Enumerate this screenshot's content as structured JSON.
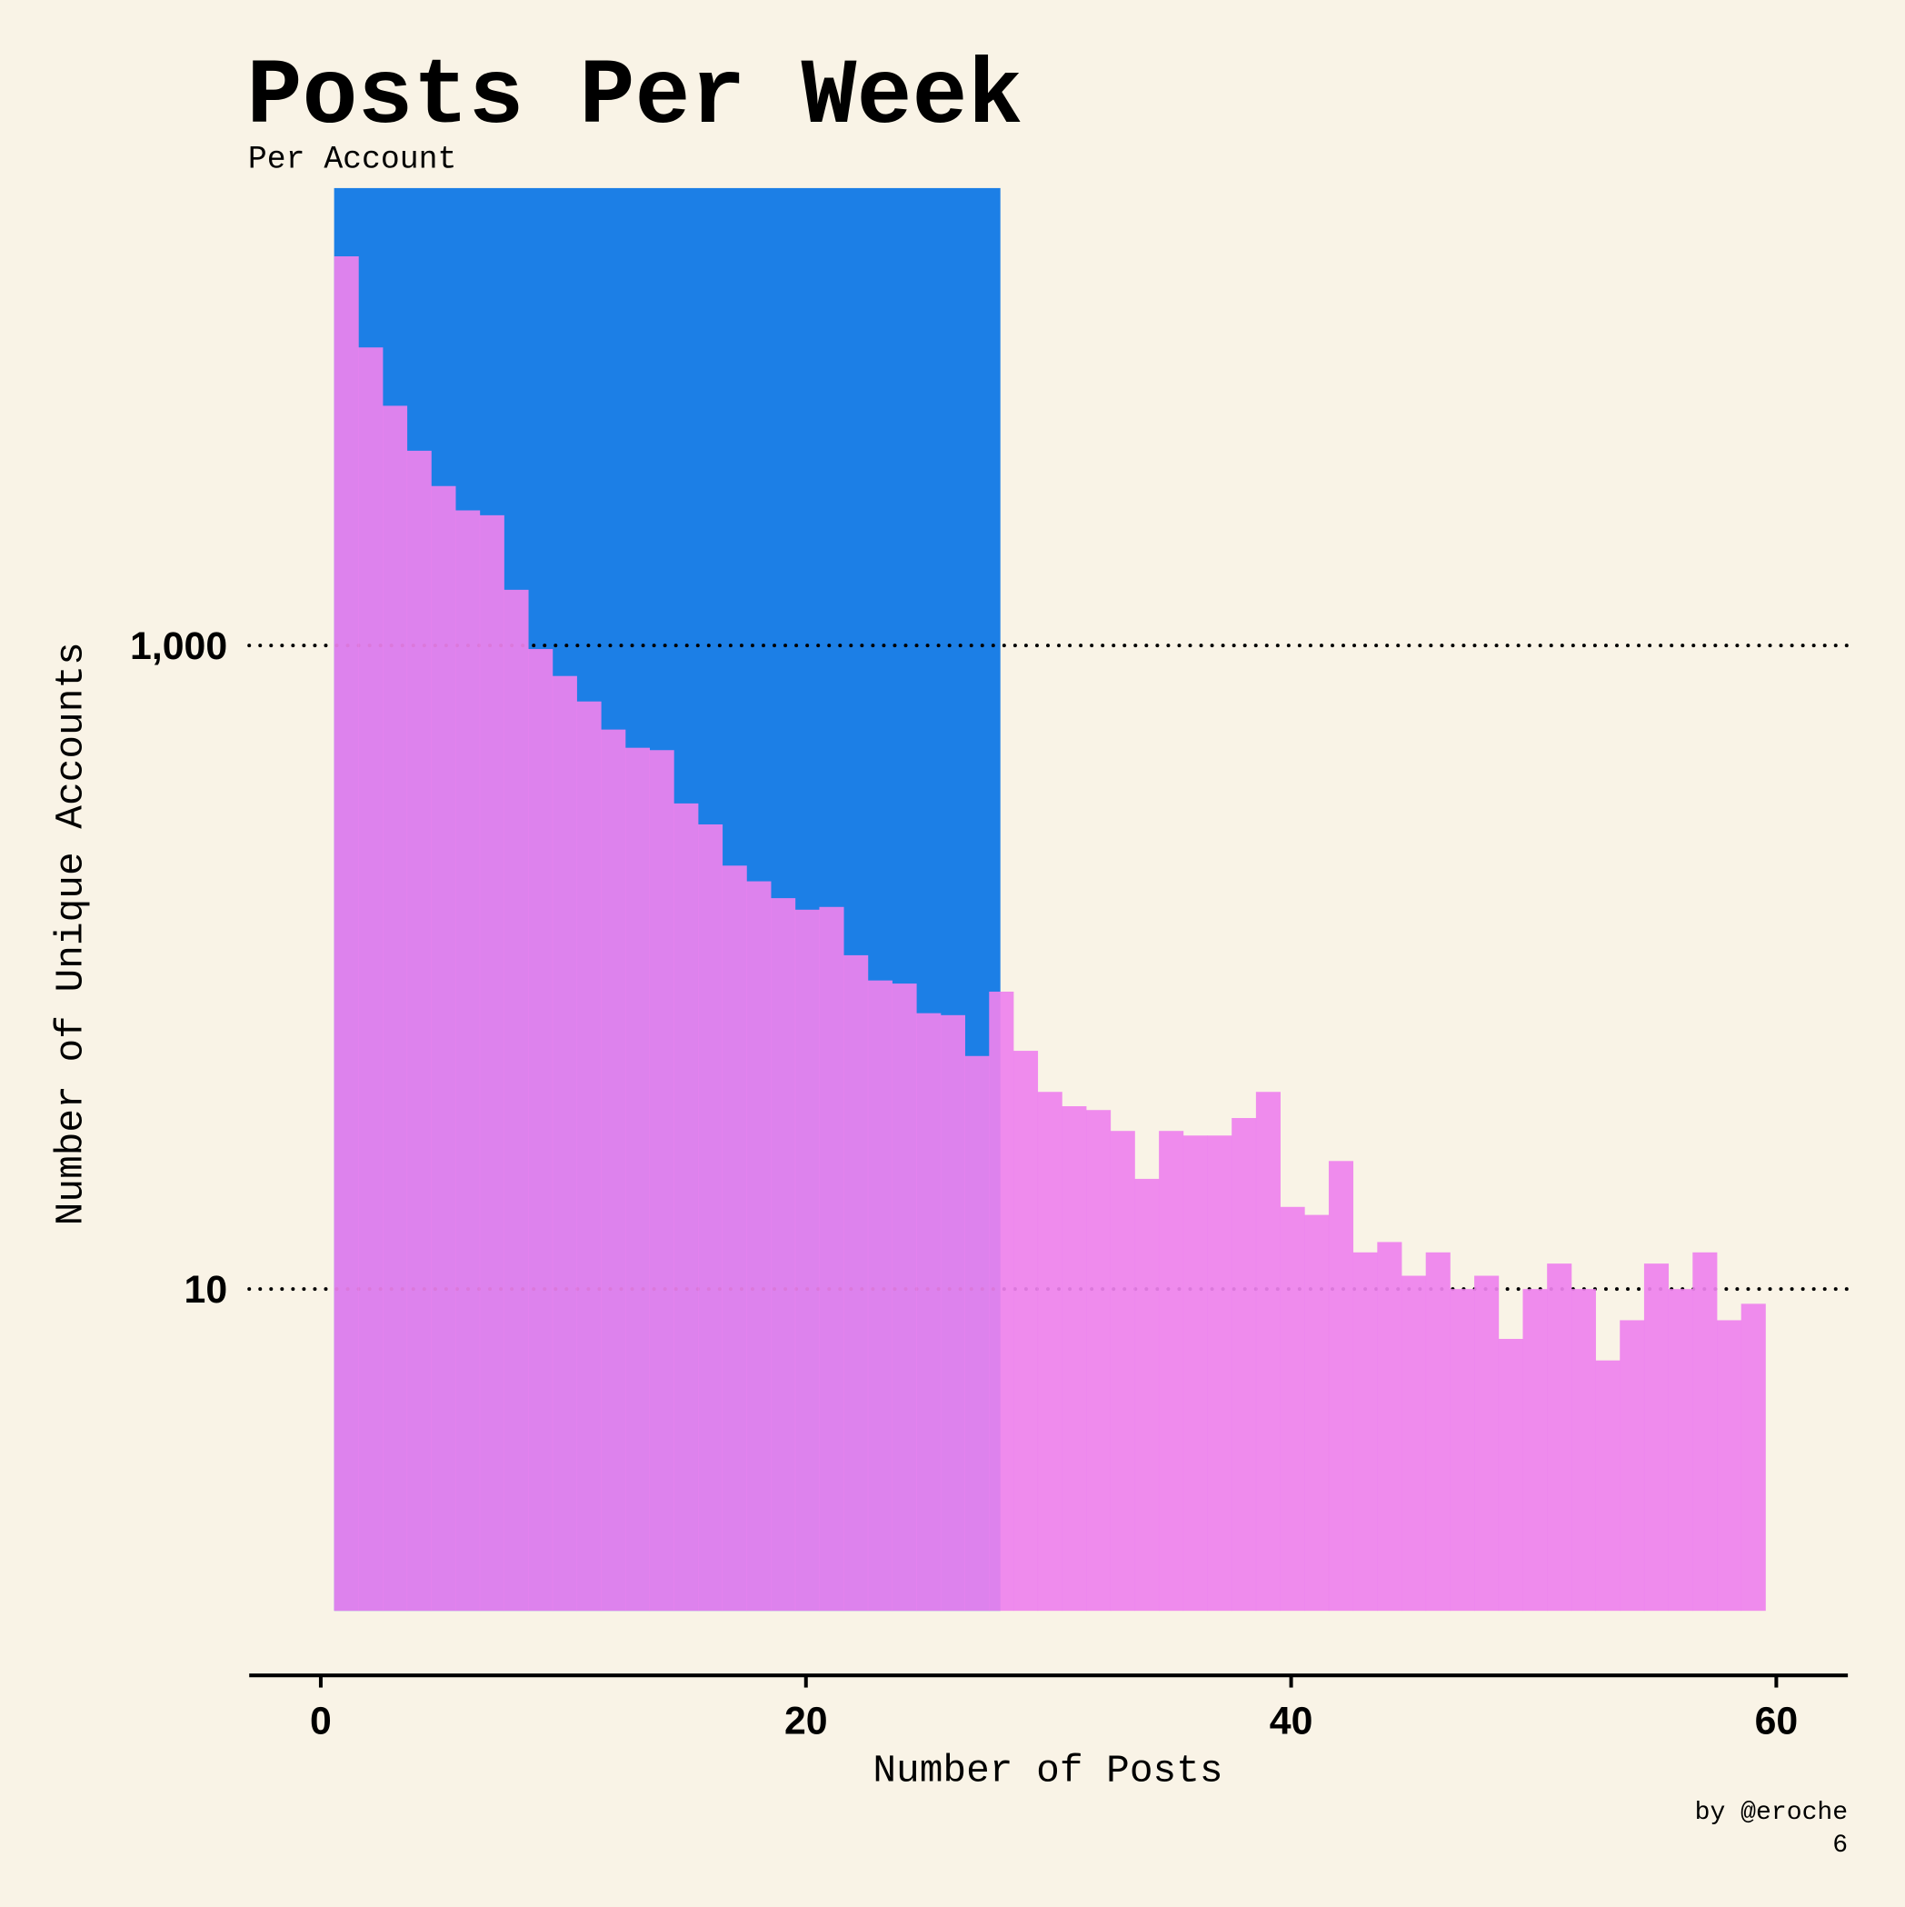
{
  "chart_data": {
    "type": "histogram",
    "title": "Posts Per Week",
    "subtitle": "Per Account",
    "xlabel": "Number of Posts",
    "ylabel": "Number of Unique Accounts",
    "annotations": [
      "by @eroche",
      "6"
    ],
    "series": [
      {
        "color": "#1c7fe6",
        "opacity": 1,
        "bins": [
          0.55,
          28
        ],
        "values": [
          26400
        ]
      },
      {
        "color": "#ee82ee",
        "opacity": 0.92,
        "bins": [
          0.55,
          1.55,
          2.55,
          3.55,
          4.55,
          5.55,
          6.55,
          7.55,
          8.55,
          9.55,
          10.55,
          11.55,
          12.55,
          13.55,
          14.55,
          15.55,
          16.55,
          17.55,
          18.55,
          19.55,
          20.55,
          21.55,
          22.55,
          23.55,
          24.55,
          25.55,
          26.55,
          27.55,
          28.55,
          29.55,
          30.55,
          31.55,
          32.55,
          33.55,
          34.55,
          35.55,
          36.55,
          37.55,
          38.55,
          39.55,
          40.55,
          41.55,
          42.55,
          43.55,
          44.55,
          45.55,
          46.55,
          47.55,
          48.55,
          49.55,
          50.55,
          51.55,
          52.55,
          53.55,
          54.55,
          55.55,
          56.55,
          57.55,
          58.55,
          59.55
        ],
        "values": [
          16200,
          8440,
          5560,
          4030,
          3130,
          2630,
          2540,
          1490,
          975,
          804,
          670,
          548,
          481,
          473,
          323,
          278,
          207,
          185,
          164,
          151,
          154,
          109,
          91,
          89,
          72,
          71,
          53,
          84,
          55,
          41,
          37,
          36,
          31,
          22,
          31,
          30,
          30,
          34,
          41,
          18,
          17,
          25,
          13,
          14,
          11,
          13,
          10,
          11,
          7,
          10,
          12,
          10,
          6,
          8,
          12,
          10,
          13,
          8,
          9
        ]
      }
    ],
    "xlim": [
      -2.95,
      62.95
    ],
    "xticks": [
      0,
      20,
      40,
      60
    ],
    "ylim": [
      0.63,
      30000
    ],
    "yscale": "log",
    "yticks": [
      10,
      {
        "value": 1000,
        "label": "1,000"
      }
    ],
    "grid": true
  }
}
